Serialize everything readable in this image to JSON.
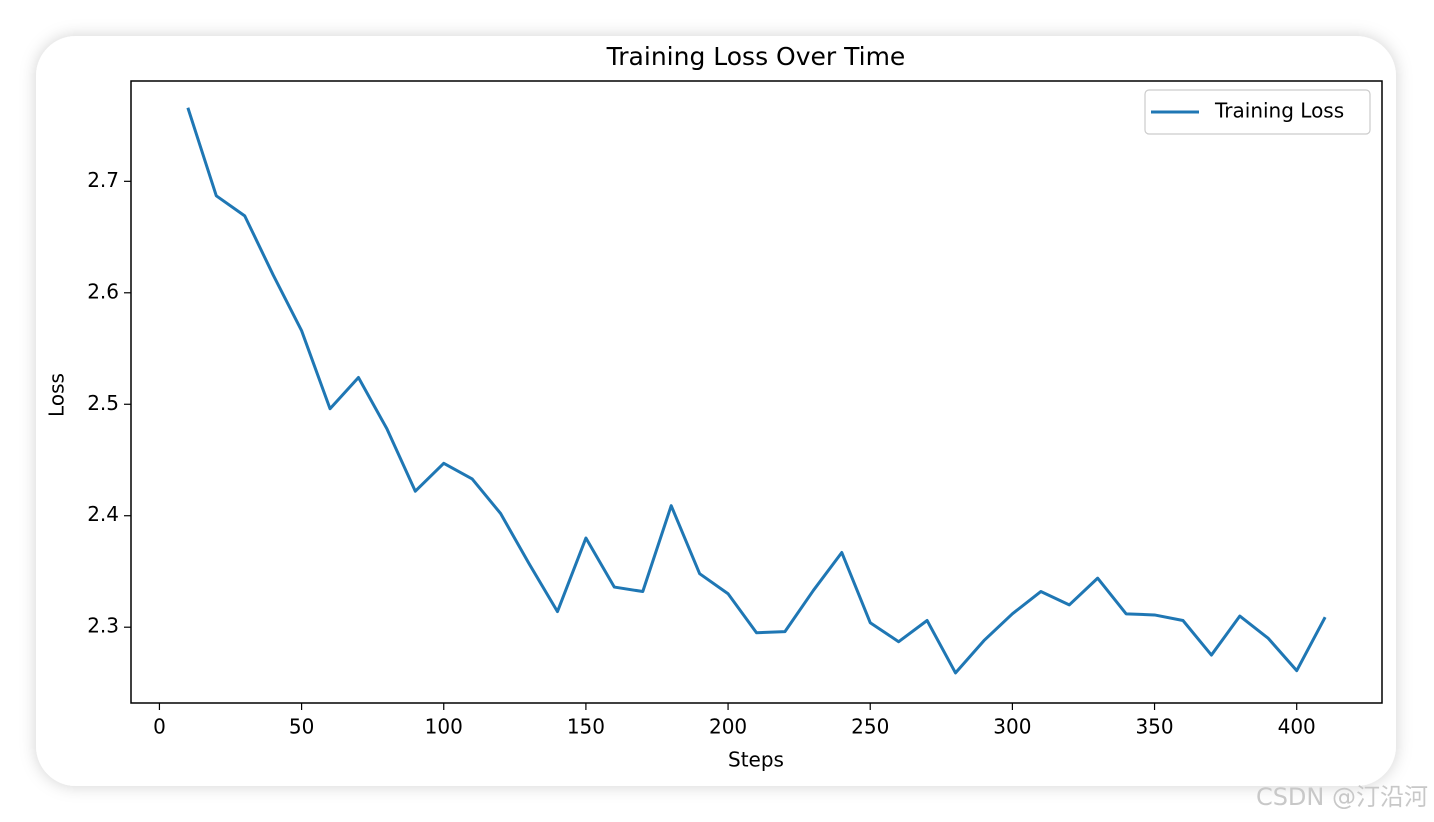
{
  "chart_data": {
    "type": "line",
    "title": "Training Loss Over Time",
    "x_label": "Steps",
    "y_label": "Loss",
    "x": [
      10,
      20,
      30,
      40,
      50,
      60,
      70,
      80,
      90,
      100,
      110,
      120,
      130,
      140,
      150,
      160,
      170,
      180,
      190,
      200,
      210,
      220,
      230,
      240,
      250,
      260,
      270,
      280,
      290,
      300,
      310,
      320,
      330,
      340,
      350,
      360,
      370,
      380,
      390,
      400,
      410
    ],
    "series": [
      {
        "name": "Training Loss",
        "color": "#1f77b4",
        "values": [
          2.766,
          2.687,
          2.669,
          2.616,
          2.566,
          2.496,
          2.524,
          2.478,
          2.422,
          2.447,
          2.433,
          2.402,
          2.357,
          2.314,
          2.38,
          2.336,
          2.332,
          2.409,
          2.348,
          2.33,
          2.295,
          2.296,
          2.333,
          2.367,
          2.304,
          2.287,
          2.306,
          2.259,
          2.288,
          2.312,
          2.332,
          2.32,
          2.344,
          2.312,
          2.311,
          2.306,
          2.275,
          2.31,
          2.29,
          2.261,
          2.309
        ]
      }
    ],
    "xlim": [
      -10,
      430
    ],
    "xticks": [
      0,
      50,
      100,
      150,
      200,
      250,
      300,
      350,
      400
    ],
    "ylim": [
      2.232,
      2.79
    ],
    "yticks": [
      2.3,
      2.4,
      2.5,
      2.6,
      2.7
    ],
    "legend": "upper right",
    "grid": false
  },
  "watermark": "CSDN @汀沿河"
}
